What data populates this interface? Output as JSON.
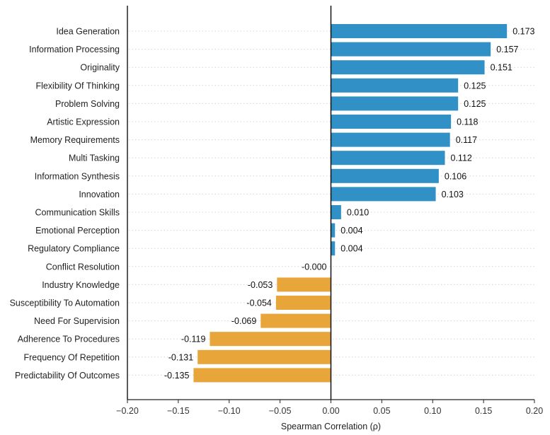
{
  "chart_data": {
    "type": "bar",
    "orientation": "horizontal",
    "title": "",
    "xlabel": "Spearman Correlation (ρ)",
    "ylabel": "",
    "xlim": [
      -0.2,
      0.2
    ],
    "xticks": [
      -0.2,
      -0.15,
      -0.1,
      -0.05,
      0.0,
      0.05,
      0.1,
      0.15,
      0.2
    ],
    "xtick_labels": [
      "−0.20",
      "−0.15",
      "−0.10",
      "−0.05",
      "0.00",
      "0.05",
      "0.10",
      "0.15",
      "0.20"
    ],
    "grid": "horizontal dotted",
    "legend": "none",
    "colors": {
      "positive": "#3190c6",
      "negative": "#e8a53a"
    },
    "categories": [
      "Idea Generation",
      "Information Processing",
      "Originality",
      "Flexibility Of Thinking",
      "Problem Solving",
      "Artistic Expression",
      "Memory Requirements",
      "Multi Tasking",
      "Information Synthesis",
      "Innovation",
      "Communication Skills",
      "Emotional Perception",
      "Regulatory Compliance",
      "Conflict Resolution",
      "Industry Knowledge",
      "Susceptibility To Automation",
      "Need For Supervision",
      "Adherence To Procedures",
      "Frequency Of Repetition",
      "Predictability Of Outcomes"
    ],
    "values": [
      0.173,
      0.157,
      0.151,
      0.125,
      0.125,
      0.118,
      0.117,
      0.112,
      0.106,
      0.103,
      0.01,
      0.004,
      0.004,
      -0.0,
      -0.053,
      -0.054,
      -0.069,
      -0.119,
      -0.131,
      -0.135
    ],
    "value_labels": [
      "0.173",
      "0.157",
      "0.151",
      "0.125",
      "0.125",
      "0.118",
      "0.117",
      "0.112",
      "0.106",
      "0.103",
      "0.010",
      "0.004",
      "0.004",
      "-0.000",
      "-0.053",
      "-0.054",
      "-0.069",
      "-0.119",
      "-0.131",
      "-0.135"
    ]
  }
}
